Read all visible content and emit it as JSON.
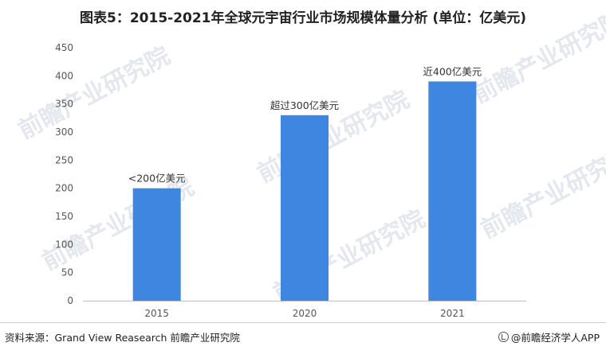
{
  "title": "图表5：2015-2021年全球元宇宙行业市场规模体量分析 (单位：亿美元)",
  "source": "资料来源：Grand View Reasearch 前瞻产业研究院",
  "brand": "@前瞻经济学人APP",
  "watermark": "前瞻产业研究院",
  "colors": {
    "bar": "#3f86e0",
    "axis": "#bfbfbf",
    "text": "#555555"
  },
  "chart_data": {
    "type": "bar",
    "categories": [
      "2015",
      "2020",
      "2021"
    ],
    "values": [
      200,
      330,
      390
    ],
    "data_labels": [
      "<200亿美元",
      "超过300亿美元",
      "近400亿美元"
    ],
    "ylim": [
      0,
      450
    ],
    "yticks": [
      0,
      50,
      100,
      150,
      200,
      250,
      300,
      350,
      400,
      450
    ],
    "grid": false
  }
}
